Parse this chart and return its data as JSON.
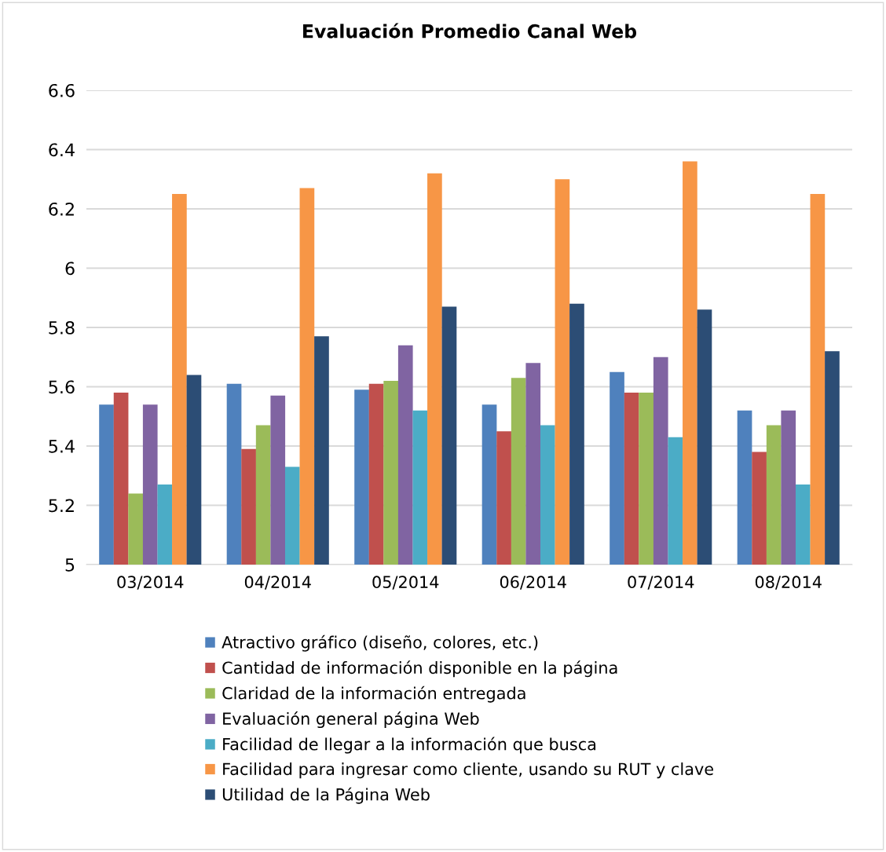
{
  "chart_data": {
    "type": "bar",
    "title": "Evaluación Promedio Canal Web",
    "categories": [
      "03/2014",
      "04/2014",
      "05/2014",
      "06/2014",
      "07/2014",
      "08/2014"
    ],
    "series": [
      {
        "name": "Atractivo gráfico (diseño, colores, etc.)",
        "color": "#4f81bd",
        "values": [
          5.54,
          5.61,
          5.59,
          5.54,
          5.65,
          5.52
        ]
      },
      {
        "name": "Cantidad de información disponible en la página",
        "color": "#c0504d",
        "values": [
          5.58,
          5.39,
          5.61,
          5.45,
          5.58,
          5.38
        ]
      },
      {
        "name": "Claridad de la información entregada",
        "color": "#9bbb59",
        "values": [
          5.24,
          5.47,
          5.62,
          5.63,
          5.58,
          5.47
        ]
      },
      {
        "name": "Evaluación general página Web",
        "color": "#8064a2",
        "values": [
          5.54,
          5.57,
          5.74,
          5.68,
          5.7,
          5.52
        ]
      },
      {
        "name": "Facilidad de llegar a la información que busca",
        "color": "#4bacc6",
        "values": [
          5.27,
          5.33,
          5.52,
          5.47,
          5.43,
          5.27
        ]
      },
      {
        "name": "Facilidad para ingresar como cliente, usando su RUT y clave",
        "color": "#f79646",
        "values": [
          6.25,
          6.27,
          6.32,
          6.3,
          6.36,
          6.25
        ]
      },
      {
        "name": "Utilidad de la Página Web",
        "color": "#2c4d75",
        "values": [
          5.64,
          5.77,
          5.87,
          5.88,
          5.86,
          5.72
        ]
      }
    ],
    "ylim": [
      5,
      6.6
    ],
    "yticks": [
      5,
      5.2,
      5.4,
      5.6,
      5.8,
      6,
      6.2,
      6.4,
      6.6
    ],
    "grid": "y",
    "legend": "bottom"
  }
}
